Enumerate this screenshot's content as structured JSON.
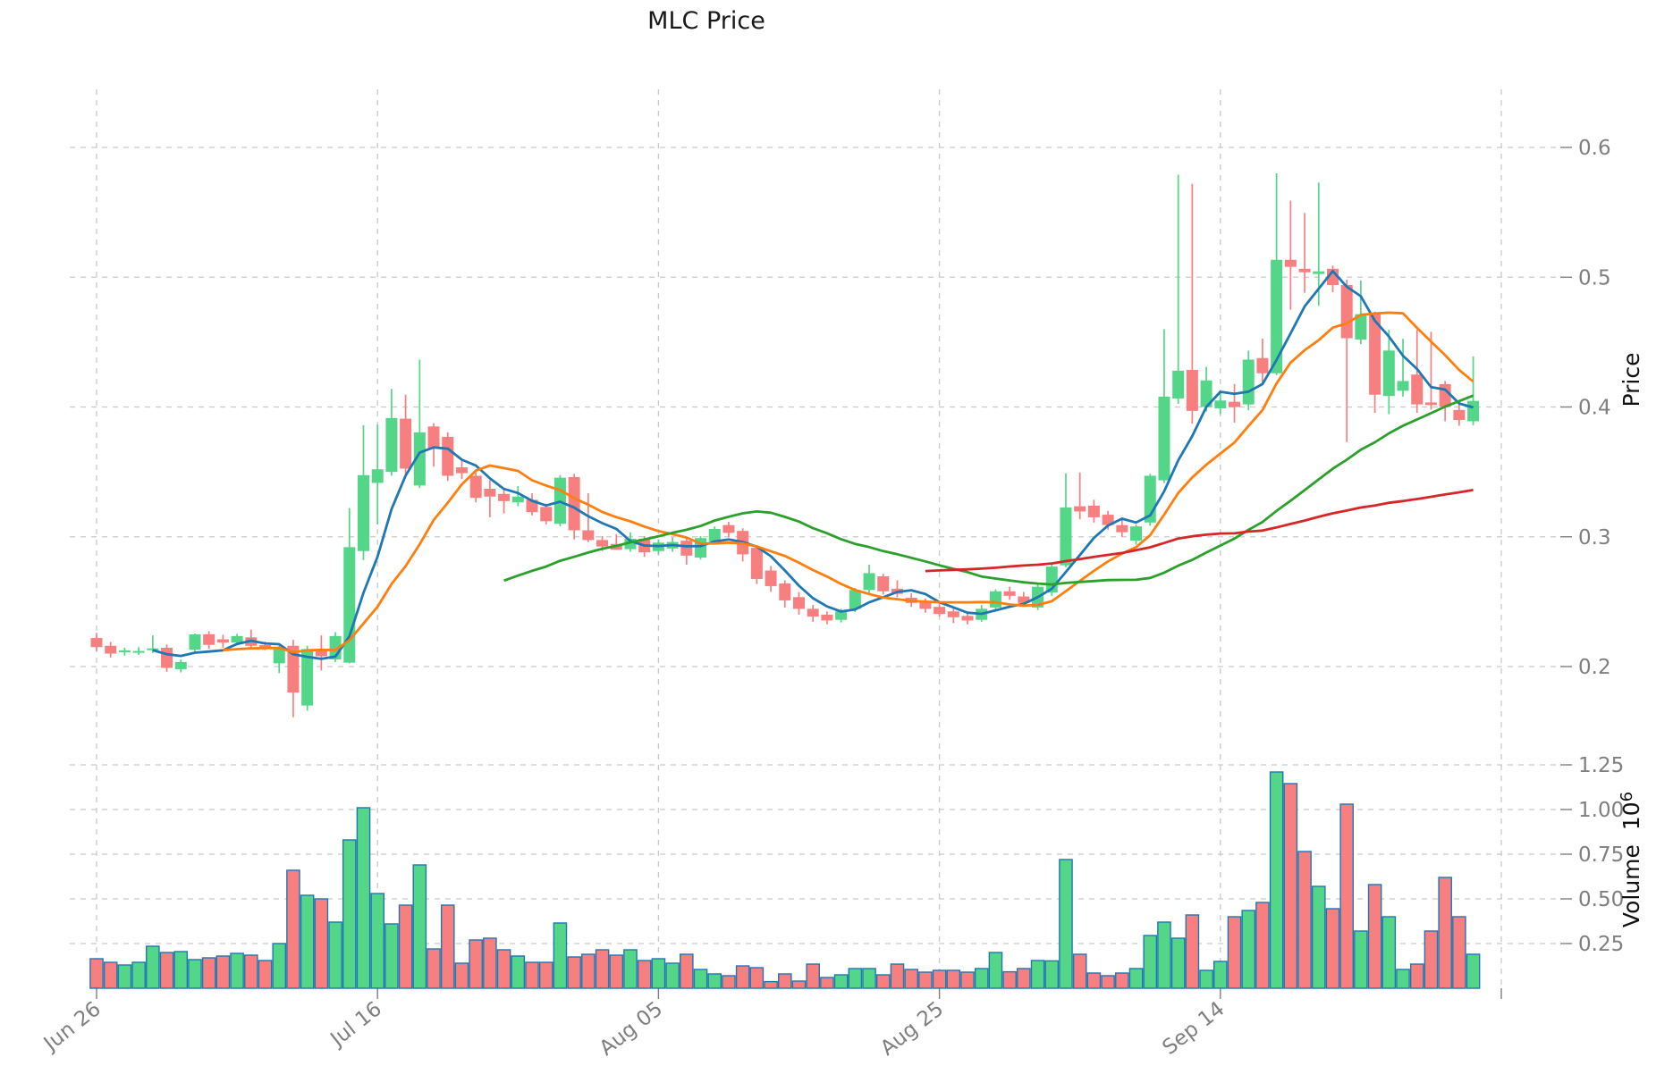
{
  "chart_data": {
    "type": "candlestick",
    "title": "MLC Price",
    "ylabel_price": "Price",
    "ylabel_volume": "Volume",
    "volume_scale_base": "10",
    "volume_scale_exponent": "6",
    "grid": true,
    "legend_position": "none",
    "price_axis_side": "right",
    "price_ticks": [
      0.2,
      0.3,
      0.4,
      0.5,
      0.6
    ],
    "volume_ticks": [
      0.25,
      0.5,
      0.75,
      1.0,
      1.25
    ],
    "price_range": [
      0.157,
      0.645
    ],
    "volume_range_millions": [
      0,
      1.3
    ],
    "x_ticks": [
      {
        "index": 0,
        "label": "Jun 26"
      },
      {
        "index": 20,
        "label": "Jul 16"
      },
      {
        "index": 40,
        "label": "Aug 05"
      },
      {
        "index": 60,
        "label": "Aug 25"
      },
      {
        "index": 80,
        "label": "Sep 14"
      },
      {
        "index": 100,
        "label": ""
      }
    ],
    "moving_averages": [
      {
        "window": 5,
        "color": "#1f77b4"
      },
      {
        "window": 10,
        "color": "#ff7f0e"
      },
      {
        "window": 30,
        "color": "#2ca02c"
      },
      {
        "window": 60,
        "color": "#d62728"
      }
    ],
    "colors": {
      "up": "#53d688",
      "down": "#f77f7f",
      "volume_edge": "#1f77b4",
      "grid": "#c9c9c9",
      "tick_text": "#7f7f7f"
    },
    "ohlcv_millions": [
      [
        0.222,
        0.226,
        0.212,
        0.215,
        0.165
      ],
      [
        0.216,
        0.219,
        0.207,
        0.21,
        0.145
      ],
      [
        0.211,
        0.2145,
        0.2085,
        0.2125,
        0.13
      ],
      [
        0.2115,
        0.215,
        0.209,
        0.212,
        0.145
      ],
      [
        0.213,
        0.224,
        0.2105,
        0.214,
        0.235
      ],
      [
        0.2145,
        0.217,
        0.196,
        0.199,
        0.2
      ],
      [
        0.198,
        0.2055,
        0.1955,
        0.2035,
        0.205
      ],
      [
        0.213,
        0.2255,
        0.2105,
        0.2248,
        0.16
      ],
      [
        0.2249,
        0.2272,
        0.2136,
        0.2167,
        0.17
      ],
      [
        0.221,
        0.2245,
        0.2145,
        0.2185,
        0.18
      ],
      [
        0.2185,
        0.2252,
        0.2162,
        0.2235,
        0.195
      ],
      [
        0.2225,
        0.2285,
        0.2136,
        0.216,
        0.185
      ],
      [
        0.2165,
        0.2192,
        0.2128,
        0.2145,
        0.155
      ],
      [
        0.2025,
        0.216,
        0.195,
        0.2135,
        0.25
      ],
      [
        0.216,
        0.2205,
        0.161,
        0.18,
        0.66
      ],
      [
        0.17,
        0.216,
        0.166,
        0.2135,
        0.52
      ],
      [
        0.2125,
        0.224,
        0.197,
        0.208,
        0.5
      ],
      [
        0.2055,
        0.2265,
        0.2035,
        0.2235,
        0.37
      ],
      [
        0.203,
        0.322,
        0.2025,
        0.292,
        0.83
      ],
      [
        0.289,
        0.386,
        0.282,
        0.3475,
        1.01
      ],
      [
        0.3415,
        0.3865,
        0.3095,
        0.352,
        0.53
      ],
      [
        0.35,
        0.414,
        0.347,
        0.3915,
        0.36
      ],
      [
        0.391,
        0.4095,
        0.348,
        0.3525,
        0.465
      ],
      [
        0.3395,
        0.4365,
        0.3375,
        0.3805,
        0.69
      ],
      [
        0.385,
        0.3875,
        0.354,
        0.368,
        0.22
      ],
      [
        0.377,
        0.3805,
        0.343,
        0.347,
        0.465
      ],
      [
        0.3535,
        0.3585,
        0.3445,
        0.349,
        0.14
      ],
      [
        0.347,
        0.3495,
        0.3265,
        0.33,
        0.27
      ],
      [
        0.337,
        0.3435,
        0.315,
        0.331,
        0.28
      ],
      [
        0.333,
        0.3365,
        0.318,
        0.3275,
        0.215
      ],
      [
        0.3265,
        0.339,
        0.3235,
        0.331,
        0.18
      ],
      [
        0.3285,
        0.3335,
        0.3165,
        0.319,
        0.145
      ],
      [
        0.323,
        0.3255,
        0.3095,
        0.312,
        0.145
      ],
      [
        0.31,
        0.3475,
        0.308,
        0.3455,
        0.365
      ],
      [
        0.346,
        0.3485,
        0.298,
        0.305,
        0.175
      ],
      [
        0.305,
        0.3335,
        0.296,
        0.2975,
        0.19
      ],
      [
        0.2975,
        0.3005,
        0.289,
        0.2925,
        0.215
      ],
      [
        0.2945,
        0.302,
        0.29,
        0.29,
        0.185
      ],
      [
        0.2905,
        0.3035,
        0.2885,
        0.2985,
        0.215
      ],
      [
        0.2985,
        0.3005,
        0.2845,
        0.288,
        0.155
      ],
      [
        0.289,
        0.298,
        0.2865,
        0.2955,
        0.165
      ],
      [
        0.291,
        0.2995,
        0.2885,
        0.296,
        0.14
      ],
      [
        0.297,
        0.2985,
        0.2785,
        0.2855,
        0.19
      ],
      [
        0.284,
        0.3005,
        0.2825,
        0.299,
        0.105
      ],
      [
        0.2965,
        0.308,
        0.294,
        0.306,
        0.08
      ],
      [
        0.309,
        0.3115,
        0.2995,
        0.303,
        0.07
      ],
      [
        0.3045,
        0.3065,
        0.281,
        0.2865,
        0.125
      ],
      [
        0.2915,
        0.2935,
        0.2635,
        0.2675,
        0.115
      ],
      [
        0.274,
        0.2775,
        0.2575,
        0.262,
        0.037
      ],
      [
        0.264,
        0.2665,
        0.2455,
        0.251,
        0.08
      ],
      [
        0.2535,
        0.2575,
        0.24,
        0.2445,
        0.04
      ],
      [
        0.2445,
        0.2475,
        0.2345,
        0.2385,
        0.135
      ],
      [
        0.24,
        0.2425,
        0.2325,
        0.2355,
        0.06
      ],
      [
        0.236,
        0.2445,
        0.234,
        0.2425,
        0.075
      ],
      [
        0.2445,
        0.2605,
        0.242,
        0.259,
        0.11
      ],
      [
        0.259,
        0.2785,
        0.2565,
        0.272,
        0.11
      ],
      [
        0.2695,
        0.2715,
        0.2555,
        0.258,
        0.075
      ],
      [
        0.26,
        0.2665,
        0.2535,
        0.256,
        0.135
      ],
      [
        0.253,
        0.2565,
        0.246,
        0.249,
        0.105
      ],
      [
        0.2505,
        0.2525,
        0.2415,
        0.2445,
        0.09
      ],
      [
        0.246,
        0.2485,
        0.2385,
        0.2405,
        0.1
      ],
      [
        0.2425,
        0.2445,
        0.2335,
        0.238,
        0.1
      ],
      [
        0.239,
        0.2415,
        0.2325,
        0.2355,
        0.09
      ],
      [
        0.236,
        0.2475,
        0.2345,
        0.2445,
        0.11
      ],
      [
        0.2455,
        0.2595,
        0.2435,
        0.258,
        0.2
      ],
      [
        0.258,
        0.2615,
        0.2515,
        0.2545,
        0.092
      ],
      [
        0.254,
        0.2575,
        0.2465,
        0.249,
        0.11
      ],
      [
        0.2455,
        0.263,
        0.2435,
        0.2615,
        0.155
      ],
      [
        0.257,
        0.2785,
        0.2545,
        0.277,
        0.153
      ],
      [
        0.278,
        0.349,
        0.2765,
        0.3226,
        0.72
      ],
      [
        0.3235,
        0.3495,
        0.3135,
        0.3195,
        0.19
      ],
      [
        0.324,
        0.3285,
        0.311,
        0.315,
        0.085
      ],
      [
        0.317,
        0.32,
        0.3055,
        0.309,
        0.07
      ],
      [
        0.309,
        0.3125,
        0.3,
        0.3035,
        0.085
      ],
      [
        0.297,
        0.3095,
        0.294,
        0.308,
        0.11
      ],
      [
        0.311,
        0.3485,
        0.3085,
        0.347,
        0.295
      ],
      [
        0.3435,
        0.46,
        0.3415,
        0.408,
        0.37
      ],
      [
        0.4065,
        0.579,
        0.4025,
        0.428,
        0.28
      ],
      [
        0.4286,
        0.572,
        0.387,
        0.397,
        0.41
      ],
      [
        0.4,
        0.431,
        0.3965,
        0.4205,
        0.1
      ],
      [
        0.399,
        0.4125,
        0.3945,
        0.405,
        0.15
      ],
      [
        0.404,
        0.4177,
        0.388,
        0.4,
        0.4
      ],
      [
        0.402,
        0.4435,
        0.3975,
        0.4365,
        0.435
      ],
      [
        0.4377,
        0.4527,
        0.4185,
        0.426,
        0.48
      ],
      [
        0.426,
        0.58,
        0.4245,
        0.5134,
        1.21
      ],
      [
        0.5134,
        0.559,
        0.475,
        0.508,
        1.145
      ],
      [
        0.5065,
        0.5495,
        0.488,
        0.5038,
        0.765
      ],
      [
        0.5025,
        0.573,
        0.478,
        0.5045,
        0.57
      ],
      [
        0.5065,
        0.5088,
        0.4885,
        0.494,
        0.445
      ],
      [
        0.494,
        0.498,
        0.373,
        0.453,
        1.03
      ],
      [
        0.452,
        0.4975,
        0.4485,
        0.4715,
        0.32
      ],
      [
        0.4715,
        0.4735,
        0.3955,
        0.4095,
        0.58
      ],
      [
        0.4085,
        0.4595,
        0.3945,
        0.4435,
        0.4
      ],
      [
        0.4125,
        0.4525,
        0.408,
        0.42,
        0.105
      ],
      [
        0.425,
        0.4595,
        0.3955,
        0.402,
        0.135
      ],
      [
        0.4035,
        0.458,
        0.398,
        0.4015,
        0.32
      ],
      [
        0.4176,
        0.42,
        0.389,
        0.4,
        0.62
      ],
      [
        0.3977,
        0.403,
        0.3855,
        0.39,
        0.4
      ],
      [
        0.389,
        0.439,
        0.386,
        0.4047,
        0.19
      ]
    ]
  }
}
